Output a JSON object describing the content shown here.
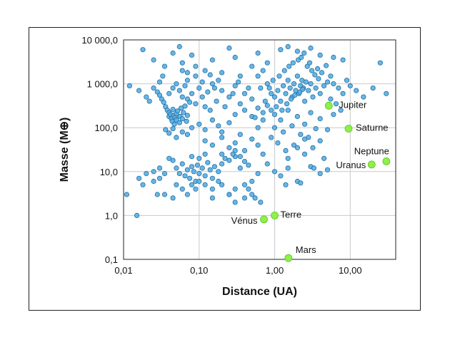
{
  "chart_data": {
    "type": "scatter",
    "title": "",
    "xlabel": "Distance (UA)",
    "ylabel": "Masse (M⊕)",
    "x_scale": "log",
    "y_scale": "log",
    "xlim": [
      0.01,
      40
    ],
    "ylim": [
      0.1,
      10000
    ],
    "grid": true,
    "x_ticks": [
      {
        "value": 0.01,
        "label": "0,01"
      },
      {
        "value": 0.1,
        "label": "0,10"
      },
      {
        "value": 1,
        "label": "1,00"
      },
      {
        "value": 10,
        "label": "10,00"
      }
    ],
    "y_ticks": [
      {
        "value": 0.1,
        "label": "0,1"
      },
      {
        "value": 1,
        "label": "1,0"
      },
      {
        "value": 10,
        "label": "10,0"
      },
      {
        "value": 100,
        "label": "100,0"
      },
      {
        "value": 1000,
        "label": "1 000,0"
      },
      {
        "value": 10000,
        "label": "10 000,0"
      }
    ],
    "colors": {
      "exoplanets": "#5aaee0",
      "exoplanets_edge": "#1f6fa8",
      "solar_system": "#8ef04a",
      "solar_system_edge": "#5cc21f"
    },
    "series": [
      {
        "id": "exoplanets",
        "points": [
          [
            0.011,
            3
          ],
          [
            0.015,
            1
          ],
          [
            0.016,
            7
          ],
          [
            0.018,
            5
          ],
          [
            0.02,
            9
          ],
          [
            0.025,
            6
          ],
          [
            0.03,
            7
          ],
          [
            0.018,
            6000
          ],
          [
            0.025,
            3500
          ],
          [
            0.035,
            2500
          ],
          [
            0.045,
            5000
          ],
          [
            0.055,
            7000
          ],
          [
            0.06,
            3000
          ],
          [
            0.08,
            4500
          ],
          [
            0.07,
            1800
          ],
          [
            0.09,
            1500
          ],
          [
            0.12,
            2000
          ],
          [
            0.15,
            3500
          ],
          [
            0.2,
            1800
          ],
          [
            0.25,
            6500
          ],
          [
            0.3,
            4000
          ],
          [
            0.35,
            1500
          ],
          [
            0.5,
            2500
          ],
          [
            0.6,
            5000
          ],
          [
            0.8,
            3000
          ],
          [
            0.012,
            900
          ],
          [
            0.016,
            700
          ],
          [
            0.02,
            500
          ],
          [
            0.025,
            800
          ],
          [
            0.028,
            650
          ],
          [
            0.03,
            550
          ],
          [
            0.032,
            450
          ],
          [
            0.034,
            380
          ],
          [
            0.036,
            300
          ],
          [
            0.038,
            250
          ],
          [
            0.04,
            220
          ],
          [
            0.04,
            180
          ],
          [
            0.042,
            200
          ],
          [
            0.043,
            160
          ],
          [
            0.044,
            140
          ],
          [
            0.045,
            260
          ],
          [
            0.046,
            190
          ],
          [
            0.047,
            120
          ],
          [
            0.048,
            170
          ],
          [
            0.05,
            150
          ],
          [
            0.05,
            210
          ],
          [
            0.052,
            240
          ],
          [
            0.055,
            130
          ],
          [
            0.056,
            180
          ],
          [
            0.058,
            280
          ],
          [
            0.06,
            160
          ],
          [
            0.062,
            220
          ],
          [
            0.065,
            310
          ],
          [
            0.068,
            140
          ],
          [
            0.07,
            190
          ],
          [
            0.04,
            600
          ],
          [
            0.045,
            800
          ],
          [
            0.05,
            1000
          ],
          [
            0.055,
            700
          ],
          [
            0.06,
            500
          ],
          [
            0.065,
            900
          ],
          [
            0.07,
            450
          ],
          [
            0.075,
            380
          ],
          [
            0.08,
            600
          ],
          [
            0.09,
            350
          ],
          [
            0.1,
            800
          ],
          [
            0.11,
            500
          ],
          [
            0.12,
            300
          ],
          [
            0.13,
            650
          ],
          [
            0.14,
            250
          ],
          [
            0.15,
            1000
          ],
          [
            0.17,
            400
          ],
          [
            0.2,
            700
          ],
          [
            0.22,
            300
          ],
          [
            0.25,
            500
          ],
          [
            0.3,
            900
          ],
          [
            0.35,
            350
          ],
          [
            0.4,
            600
          ],
          [
            0.45,
            800
          ],
          [
            0.5,
            450
          ],
          [
            0.036,
            90
          ],
          [
            0.04,
            75
          ],
          [
            0.045,
            95
          ],
          [
            0.05,
            60
          ],
          [
            0.06,
            80
          ],
          [
            0.07,
            70
          ],
          [
            0.08,
            100
          ],
          [
            0.1,
            120
          ],
          [
            0.12,
            90
          ],
          [
            0.15,
            150
          ],
          [
            0.18,
            110
          ],
          [
            0.2,
            80
          ],
          [
            0.25,
            130
          ],
          [
            0.3,
            200
          ],
          [
            0.35,
            70
          ],
          [
            0.4,
            250
          ],
          [
            0.5,
            180
          ],
          [
            0.6,
            100
          ],
          [
            0.7,
            150
          ],
          [
            0.8,
            320
          ],
          [
            0.12,
            50
          ],
          [
            0.15,
            40
          ],
          [
            0.2,
            60
          ],
          [
            0.25,
            35
          ],
          [
            0.3,
            45
          ],
          [
            0.4,
            30
          ],
          [
            0.5,
            55
          ],
          [
            0.6,
            40
          ],
          [
            0.2,
            25
          ],
          [
            0.3,
            22
          ],
          [
            0.04,
            20
          ],
          [
            0.045,
            18
          ],
          [
            0.05,
            12
          ],
          [
            0.055,
            9
          ],
          [
            0.06,
            15
          ],
          [
            0.065,
            8
          ],
          [
            0.07,
            11
          ],
          [
            0.075,
            7
          ],
          [
            0.08,
            13
          ],
          [
            0.085,
            10
          ],
          [
            0.09,
            6
          ],
          [
            0.095,
            14
          ],
          [
            0.1,
            9
          ],
          [
            0.11,
            12
          ],
          [
            0.12,
            8
          ],
          [
            0.13,
            16
          ],
          [
            0.14,
            11
          ],
          [
            0.15,
            7
          ],
          [
            0.16,
            13
          ],
          [
            0.18,
            10
          ],
          [
            0.2,
            15
          ],
          [
            0.22,
            20
          ],
          [
            0.25,
            18
          ],
          [
            0.28,
            25
          ],
          [
            0.3,
            30
          ],
          [
            0.35,
            22
          ],
          [
            0.4,
            17
          ],
          [
            0.1,
            20
          ],
          [
            0.12,
            25
          ],
          [
            0.08,
            22
          ],
          [
            0.05,
            5
          ],
          [
            0.06,
            4
          ],
          [
            0.07,
            3
          ],
          [
            0.08,
            5
          ],
          [
            0.09,
            4
          ],
          [
            0.1,
            6
          ],
          [
            0.12,
            5
          ],
          [
            0.15,
            4
          ],
          [
            0.18,
            6
          ],
          [
            0.2,
            5
          ],
          [
            0.25,
            3
          ],
          [
            0.3,
            4
          ],
          [
            0.4,
            5
          ],
          [
            0.5,
            3
          ],
          [
            0.03,
            12
          ],
          [
            0.035,
            9
          ],
          [
            0.025,
            10
          ],
          [
            0.028,
            3
          ],
          [
            0.035,
            3
          ],
          [
            0.045,
            2.5
          ],
          [
            1,
            500
          ],
          [
            1.1,
            700
          ],
          [
            1.2,
            400
          ],
          [
            1.3,
            900
          ],
          [
            1.4,
            600
          ],
          [
            1.5,
            1200
          ],
          [
            1.6,
            800
          ],
          [
            1.7,
            500
          ],
          [
            1.8,
            1000
          ],
          [
            1.9,
            700
          ],
          [
            2,
            1500
          ],
          [
            2.1,
            600
          ],
          [
            2.2,
            900
          ],
          [
            2.3,
            1200
          ],
          [
            2.4,
            800
          ],
          [
            2.5,
            400
          ],
          [
            2.6,
            1100
          ],
          [
            2.8,
            700
          ],
          [
            3,
            1000
          ],
          [
            3.2,
            500
          ],
          [
            3.5,
            800
          ],
          [
            3.8,
            1300
          ],
          [
            4,
            600
          ],
          [
            4.5,
            900
          ],
          [
            5,
            1100
          ],
          [
            0.9,
            600
          ],
          [
            0.85,
            800
          ],
          [
            0.8,
            1000
          ],
          [
            0.95,
            1200
          ],
          [
            1.05,
            300
          ],
          [
            1.15,
            1500
          ],
          [
            1.25,
            250
          ],
          [
            1.35,
            2000
          ],
          [
            1.45,
            350
          ],
          [
            1.55,
            2500
          ],
          [
            1.65,
            450
          ],
          [
            1.75,
            3000
          ],
          [
            1.85,
            550
          ],
          [
            2.05,
            3500
          ],
          [
            2.15,
            650
          ],
          [
            2.25,
            4000
          ],
          [
            2.35,
            750
          ],
          [
            2.45,
            5000
          ],
          [
            2.7,
            2500
          ],
          [
            2.9,
            3000
          ],
          [
            3.1,
            2000
          ],
          [
            3.4,
            1600
          ],
          [
            3.7,
            2200
          ],
          [
            4.2,
            1800
          ],
          [
            4.8,
            2600
          ],
          [
            5.5,
            1500
          ],
          [
            6,
            1000
          ],
          [
            7,
            800
          ],
          [
            8,
            600
          ],
          [
            9,
            1200
          ],
          [
            10,
            900
          ],
          [
            12,
            700
          ],
          [
            15,
            500
          ],
          [
            20,
            800
          ],
          [
            25,
            3000
          ],
          [
            30,
            600
          ],
          [
            5.5,
            450
          ],
          [
            6.5,
            350
          ],
          [
            7.5,
            250
          ],
          [
            1.2,
            6000
          ],
          [
            1.5,
            7000
          ],
          [
            2,
            5500
          ],
          [
            3,
            6500
          ],
          [
            4,
            4500
          ],
          [
            6,
            4000
          ],
          [
            8,
            3500
          ],
          [
            0.7,
            2000
          ],
          [
            0.6,
            1500
          ],
          [
            0.65,
            800
          ],
          [
            0.75,
            400
          ],
          [
            1,
            200
          ],
          [
            1.2,
            150
          ],
          [
            1.5,
            250
          ],
          [
            2,
            180
          ],
          [
            2.5,
            120
          ],
          [
            3,
            220
          ],
          [
            4,
            160
          ],
          [
            5,
            90
          ],
          [
            6,
            200
          ],
          [
            1,
            100
          ],
          [
            1.3,
            80
          ],
          [
            1.7,
            110
          ],
          [
            2.2,
            70
          ],
          [
            2.8,
            60
          ],
          [
            3.5,
            95
          ],
          [
            0.9,
            60
          ],
          [
            1.1,
            45
          ],
          [
            1.4,
            30
          ],
          [
            1.8,
            40
          ],
          [
            2.5,
            25
          ],
          [
            3.2,
            35
          ],
          [
            4,
            50
          ],
          [
            4.5,
            20
          ],
          [
            0.7,
            25
          ],
          [
            0.8,
            15
          ],
          [
            1,
            10
          ],
          [
            1.2,
            8
          ],
          [
            1.5,
            12
          ],
          [
            2,
            6
          ],
          [
            3,
            13
          ],
          [
            4,
            9
          ],
          [
            5,
            11
          ],
          [
            1.5,
            20
          ],
          [
            2,
            35
          ],
          [
            2.5,
            55
          ],
          [
            1.4,
            5
          ],
          [
            2.2,
            5.5
          ],
          [
            3.3,
            12
          ],
          [
            0.55,
            2.5
          ],
          [
            0.65,
            2
          ],
          [
            0.45,
            4
          ],
          [
            0.5,
            6
          ],
          [
            0.6,
            9
          ],
          [
            0.35,
            12
          ],
          [
            0.45,
            14
          ],
          [
            0.3,
            2
          ],
          [
            0.4,
            2.5
          ],
          [
            0.25,
            3
          ],
          [
            0.15,
            2.5
          ],
          [
            0.6,
            280
          ],
          [
            0.7,
            220
          ],
          [
            0.55,
            170
          ],
          [
            0.9,
            250
          ],
          [
            0.28,
            600
          ],
          [
            0.33,
            1100
          ],
          [
            0.18,
            1200
          ],
          [
            0.16,
            800
          ],
          [
            0.14,
            1600
          ],
          [
            0.11,
            1100
          ],
          [
            0.09,
            2500
          ],
          [
            0.07,
            1200
          ],
          [
            0.06,
            2000
          ],
          [
            0.033,
            1500
          ],
          [
            0.03,
            1100
          ],
          [
            0.022,
            400
          ]
        ]
      },
      {
        "id": "solar_system",
        "points": [
          {
            "name": "Mars",
            "x": 1.52,
            "y": 0.107
          },
          {
            "name": "Vénus",
            "x": 0.72,
            "y": 0.815
          },
          {
            "name": "Terre",
            "x": 1.0,
            "y": 1.0
          },
          {
            "name": "Uranus",
            "x": 19.2,
            "y": 14.5
          },
          {
            "name": "Neptune",
            "x": 30.1,
            "y": 17.1
          },
          {
            "name": "Saturne",
            "x": 9.5,
            "y": 95
          },
          {
            "name": "Jupiter",
            "x": 5.2,
            "y": 318
          }
        ]
      }
    ]
  }
}
